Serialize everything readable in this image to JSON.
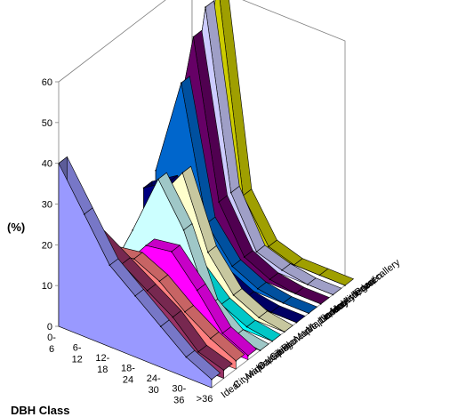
{
  "chart_data": {
    "type": "area",
    "subtype": "3d-ribbon",
    "title": "",
    "xlabel": "DBH Class",
    "ylabel": "(%)",
    "ylim": [
      0,
      60
    ],
    "yticks": [
      "0",
      "10",
      "20",
      "30",
      "40",
      "50",
      "60"
    ],
    "grid": false,
    "categories": [
      "0-6",
      "6-12",
      "12-18",
      "18-24",
      "24-30",
      "30-36",
      ">36"
    ],
    "series": [
      {
        "name": "Ideal",
        "color": "#9999ff",
        "values": [
          40,
          30,
          20,
          15,
          10,
          5,
          2
        ]
      },
      {
        "name": "Citywide total",
        "color": "#993366",
        "values": [
          24,
          22,
          18,
          14,
          10,
          4,
          2
        ]
      },
      {
        "name": "Maple, silver",
        "color": "#ff8080",
        "values": [
          10,
          16,
          17,
          14,
          9,
          5,
          2
        ]
      },
      {
        "name": "Oak, pin",
        "color": "#ff00ff",
        "values": [
          3,
          10,
          18,
          19,
          12,
          4,
          1
        ]
      },
      {
        "name": "Ginkgo",
        "color": "#ccffff",
        "values": [
          3,
          17,
          32,
          22,
          6,
          1,
          0
        ]
      },
      {
        "name": "Planetree, London",
        "color": "#00ffff",
        "values": [
          3,
          18,
          22,
          10,
          4,
          1,
          0
        ]
      },
      {
        "name": "Maple, Norway",
        "color": "#ffffcc",
        "values": [
          5,
          20,
          29,
          12,
          4,
          1,
          0
        ]
      },
      {
        "name": "Maple, red",
        "color": "#000080",
        "values": [
          18,
          22,
          10,
          4,
          1,
          0,
          0
        ]
      },
      {
        "name": "Linden, little leaf",
        "color": "#0066cc",
        "values": [
          20,
          44,
          12,
          4,
          1,
          0,
          0
        ]
      },
      {
        "name": "Honeylocust",
        "color": "#660066",
        "values": [
          18,
          53,
          15,
          4,
          1,
          0,
          0
        ]
      },
      {
        "name": "Ash, green",
        "color": "#ccccff",
        "values": [
          12,
          58,
          15,
          3,
          1,
          0,
          0
        ]
      },
      {
        "name": "Pear, callery",
        "color": "#cccc00",
        "values": [
          10,
          62,
          12,
          2,
          0,
          0,
          0
        ]
      }
    ]
  }
}
